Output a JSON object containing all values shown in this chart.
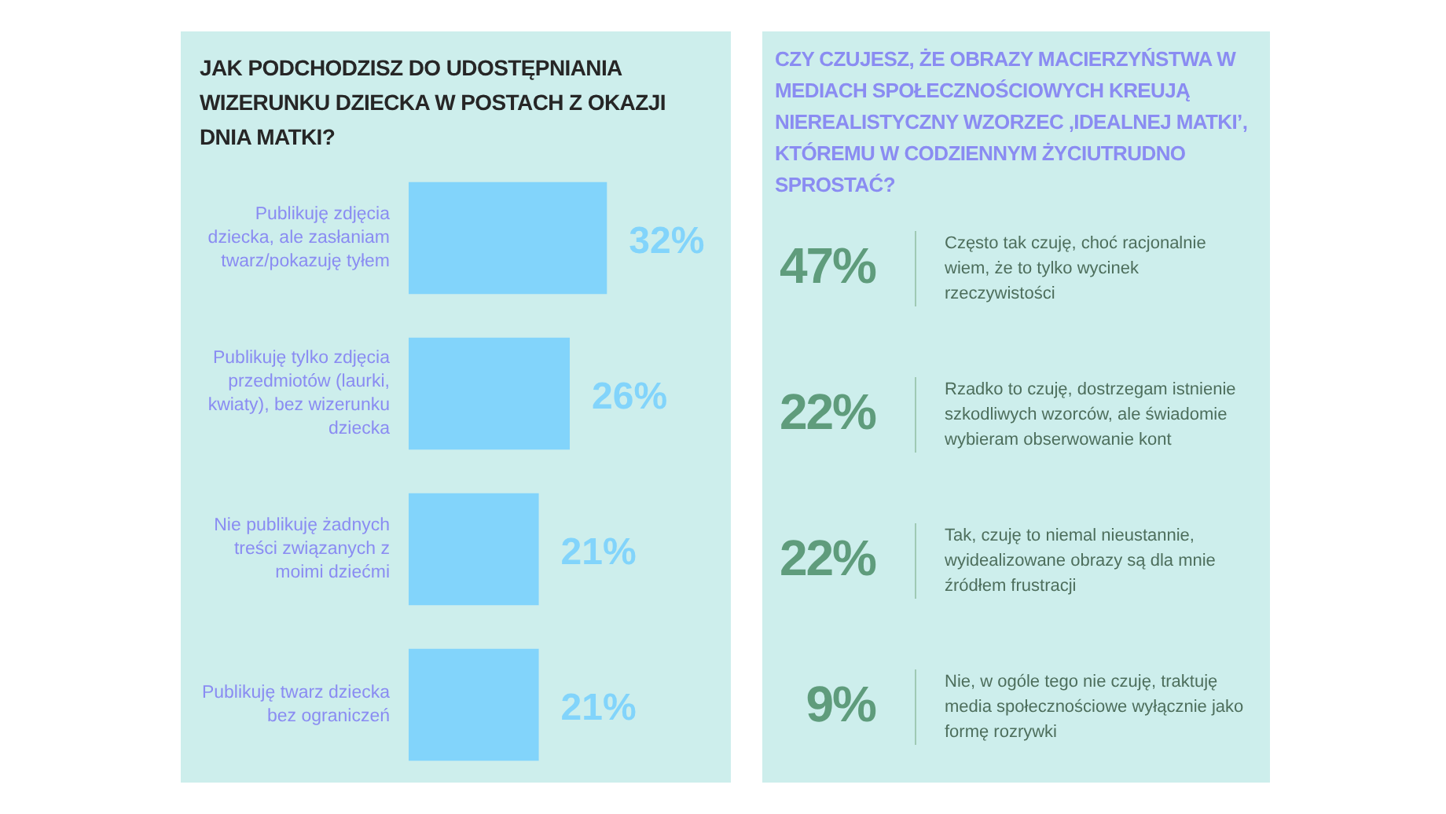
{
  "chart_data": [
    {
      "type": "bar",
      "orientation": "horizontal",
      "title": "JAK PODCHODZISZ DO UDOSTĘPNIANIA WIZERUNKU DZIECKA W POSTACH Z OKAZJI DNIA MATKI?",
      "categories": [
        "Publikuję zdjęcia dziecka, ale zasłaniam twarz/pokazuję tyłem",
        "Publikuję tylko zdjęcia przedmiotów (laurki, kwiaty), bez wizerunku dziecka",
        "Nie publikuję żadnych treści związanych z moimi dziećmi",
        "Publikuję twarz dziecka bez ograniczeń"
      ],
      "values": [
        32,
        26,
        21,
        21
      ],
      "value_labels": [
        "32%",
        "26%",
        "21%",
        "21%"
      ],
      "color": "#82d4fb",
      "xlim": [
        0,
        52
      ],
      "tick_labels": false
    },
    {
      "type": "other",
      "title": "CZY CZUJESZ, ŻE OBRAZY MACIERZYŃSTWA W MEDIACH SPOŁECZNOŚCIOWYCH KREUJĄ NIEREALISTYCZNY WZORZEC ‚IDEALNEJ MATKI’, KTÓREMU W CODZIENNYM ŻYCIUTRUDNO SPROSTAĆ?",
      "categories": [
        "Często tak czuję, choć racjonalnie wiem, że to tylko wycinek rzeczywistości",
        "Rzadko to czuję, dostrzegam istnienie szkodliwych wzorców, ale świadomie wybieram obserwowanie kont",
        "Tak, czuję to niemal nieustannie, wyidealizowane obrazy są dla mnie źródłem frustracji",
        "Nie, w ogóle tego nie czuję, traktuję media społecznościowe wyłącznie jako formę rozrywki"
      ],
      "values": [
        47,
        22,
        22,
        9
      ],
      "value_labels": [
        "47%",
        "22%",
        "22%",
        "9%"
      ]
    }
  ]
}
